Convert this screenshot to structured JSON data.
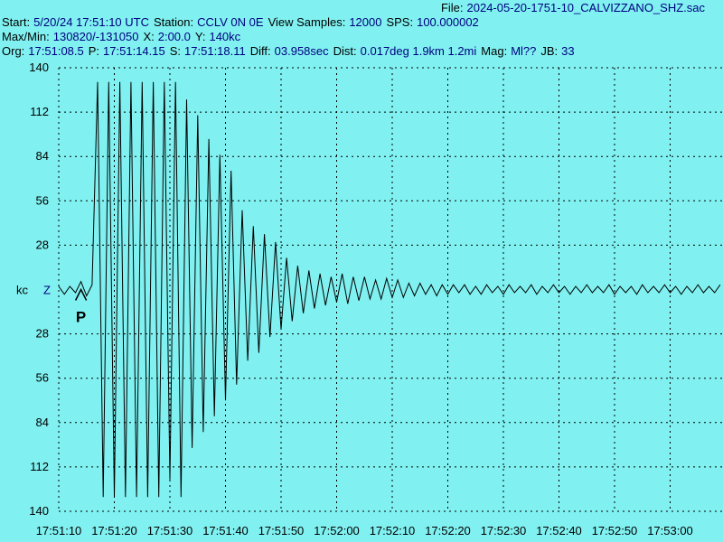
{
  "header": {
    "lines": [
      [
        {
          "k": "File:",
          "v": "2024-05-20-1751-10_CALVIZZANO_SHZ.sac"
        }
      ],
      [
        {
          "k": "Start:",
          "v": "5/20/24 17:51:10 UTC"
        },
        {
          "k": "Station:",
          "v": "CCLV 0N 0E"
        },
        {
          "k": "View Samples:",
          "v": "12000"
        },
        {
          "k": "SPS:",
          "v": "100.000002"
        }
      ],
      [
        {
          "k": "Max/Min:",
          "v": "130820/-131050"
        },
        {
          "k": "X:",
          "v": "2:00.0"
        },
        {
          "k": "Y:",
          "v": "140kc"
        }
      ],
      [
        {
          "k": "Org:",
          "v": "17:51:08.5"
        },
        {
          "k": "P:",
          "v": "17:51:14.15"
        },
        {
          "k": "S:",
          "v": "17:51:18.11"
        },
        {
          "k": "Diff:",
          "v": "03.958sec"
        },
        {
          "k": "Dist:",
          "v": "0.017deg 1.9km 1.2mi"
        },
        {
          "k": "Mag:",
          "v": "Ml??"
        },
        {
          "k": "JB:",
          "v": "33"
        }
      ]
    ]
  },
  "chart_data": {
    "type": "line",
    "unit_label": "kc",
    "channel": "Z",
    "marker": {
      "label": "P",
      "x": 4
    },
    "xlim": [
      0,
      120
    ],
    "ylim": [
      -140,
      140
    ],
    "grid": true,
    "color": "#000000",
    "xticks": [
      {
        "value": 0,
        "label": "17:51:10"
      },
      {
        "value": 10,
        "label": "17:51:20"
      },
      {
        "value": 20,
        "label": "17:51:30"
      },
      {
        "value": 30,
        "label": "17:51:40"
      },
      {
        "value": 40,
        "label": "17:51:50"
      },
      {
        "value": 50,
        "label": "17:52:00"
      },
      {
        "value": 60,
        "label": "17:52:10"
      },
      {
        "value": 70,
        "label": "17:52:20"
      },
      {
        "value": 80,
        "label": "17:52:30"
      },
      {
        "value": 90,
        "label": "17:52:40"
      },
      {
        "value": 100,
        "label": "17:52:50"
      },
      {
        "value": 110,
        "label": "17:53:00"
      }
    ],
    "yticks": [
      140,
      112,
      84,
      56,
      28,
      {
        "value": -28,
        "label": "28"
      },
      {
        "value": -56,
        "label": "56"
      },
      {
        "value": -84,
        "label": "84"
      },
      {
        "value": -112,
        "label": "112"
      },
      {
        "value": -140,
        "label": "140"
      }
    ],
    "x": [
      0,
      1,
      2,
      3,
      4,
      5,
      6,
      7,
      8,
      9,
      10,
      11,
      12,
      13,
      14,
      15,
      16,
      17,
      18,
      19,
      20,
      21,
      22,
      23,
      24,
      25,
      26,
      27,
      28,
      29,
      30,
      31,
      32,
      33,
      34,
      35,
      36,
      37,
      38,
      39,
      40,
      41,
      42,
      43,
      44,
      45,
      46,
      47,
      48,
      49,
      50,
      51,
      52,
      53,
      54,
      55,
      56,
      57,
      58,
      59,
      60,
      61,
      62,
      63,
      64,
      65,
      66,
      67,
      68,
      69,
      70,
      71,
      72,
      73,
      74,
      75,
      76,
      77,
      78,
      79,
      80,
      81,
      82,
      83,
      84,
      85,
      86,
      87,
      88,
      89,
      90,
      91,
      92,
      93,
      94,
      95,
      96,
      97,
      98,
      99,
      100,
      101,
      102,
      103,
      104,
      105,
      106,
      107,
      108,
      109,
      110,
      111,
      112,
      113,
      114,
      115,
      116,
      117,
      118,
      119
    ],
    "values": [
      2,
      -3,
      2,
      -2,
      5,
      -4,
      3,
      131,
      -131,
      131,
      -131,
      131,
      -131,
      131,
      -131,
      131,
      -131,
      131,
      -131,
      131,
      -120,
      131,
      -131,
      120,
      -100,
      110,
      -90,
      95,
      -80,
      85,
      -70,
      75,
      -60,
      50,
      -45,
      40,
      -40,
      35,
      -30,
      30,
      -25,
      20,
      -20,
      15,
      -15,
      12,
      -12,
      10,
      -10,
      8,
      -8,
      10,
      -9,
      8,
      -7,
      8,
      -6,
      6,
      -6,
      7,
      -5,
      6,
      -5,
      4,
      -4,
      4,
      -3,
      3,
      -4,
      3,
      -3,
      3,
      -2,
      3,
      -3,
      2,
      -3,
      3,
      -2,
      2,
      -3,
      3,
      -2,
      2,
      -2,
      3,
      -3,
      2,
      -2,
      3,
      -2,
      2,
      -3,
      2,
      -2,
      3,
      -2,
      2,
      -2,
      3,
      -3,
      2,
      -2,
      2,
      -3,
      3,
      -2,
      2,
      -2,
      3,
      -2,
      2,
      -3,
      2,
      -2,
      3,
      -2,
      2,
      -2,
      3
    ]
  }
}
